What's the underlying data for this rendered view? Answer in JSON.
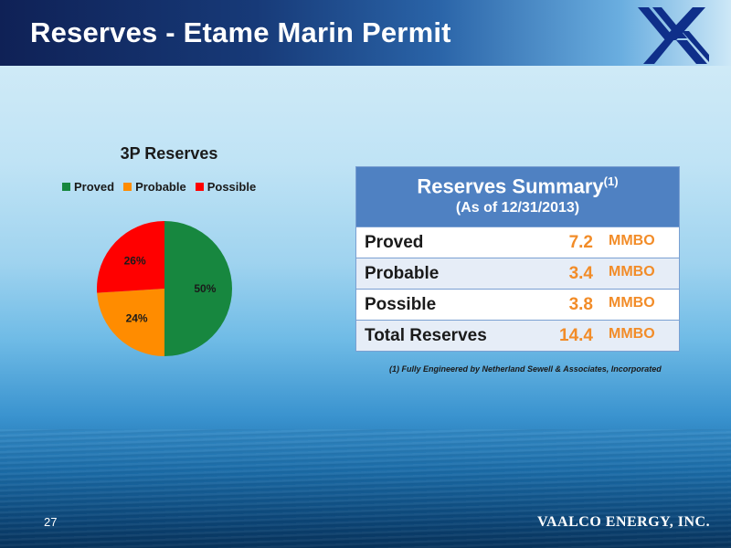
{
  "slide": {
    "title": "Reserves - Etame Marin Permit",
    "page_number": "27",
    "company": "VAALCO ENERGY, INC."
  },
  "chart_data": {
    "type": "pie",
    "title": "3P Reserves",
    "categories": [
      "Proved",
      "Probable",
      "Possible"
    ],
    "values": [
      50,
      24,
      26
    ],
    "labels": [
      "50%",
      "24%",
      "26%"
    ],
    "colors": [
      "#17873f",
      "#ff8c00",
      "#ff0000"
    ],
    "legend_position": "top"
  },
  "summary": {
    "title": "Reserves Summary",
    "title_sup": "(1)",
    "subtitle": "(As of 12/31/2013)",
    "rows": [
      {
        "label": "Proved",
        "value": "7.2",
        "unit": "MMBO"
      },
      {
        "label": "Probable",
        "value": "3.4",
        "unit": "MMBO"
      },
      {
        "label": "Possible",
        "value": "3.8",
        "unit": "MMBO"
      },
      {
        "label": "Total Reserves",
        "value": "14.4",
        "unit": "MMBO"
      }
    ],
    "footnote": "(1) Fully Engineered by Netherland Sewell & Associates, Incorporated"
  }
}
